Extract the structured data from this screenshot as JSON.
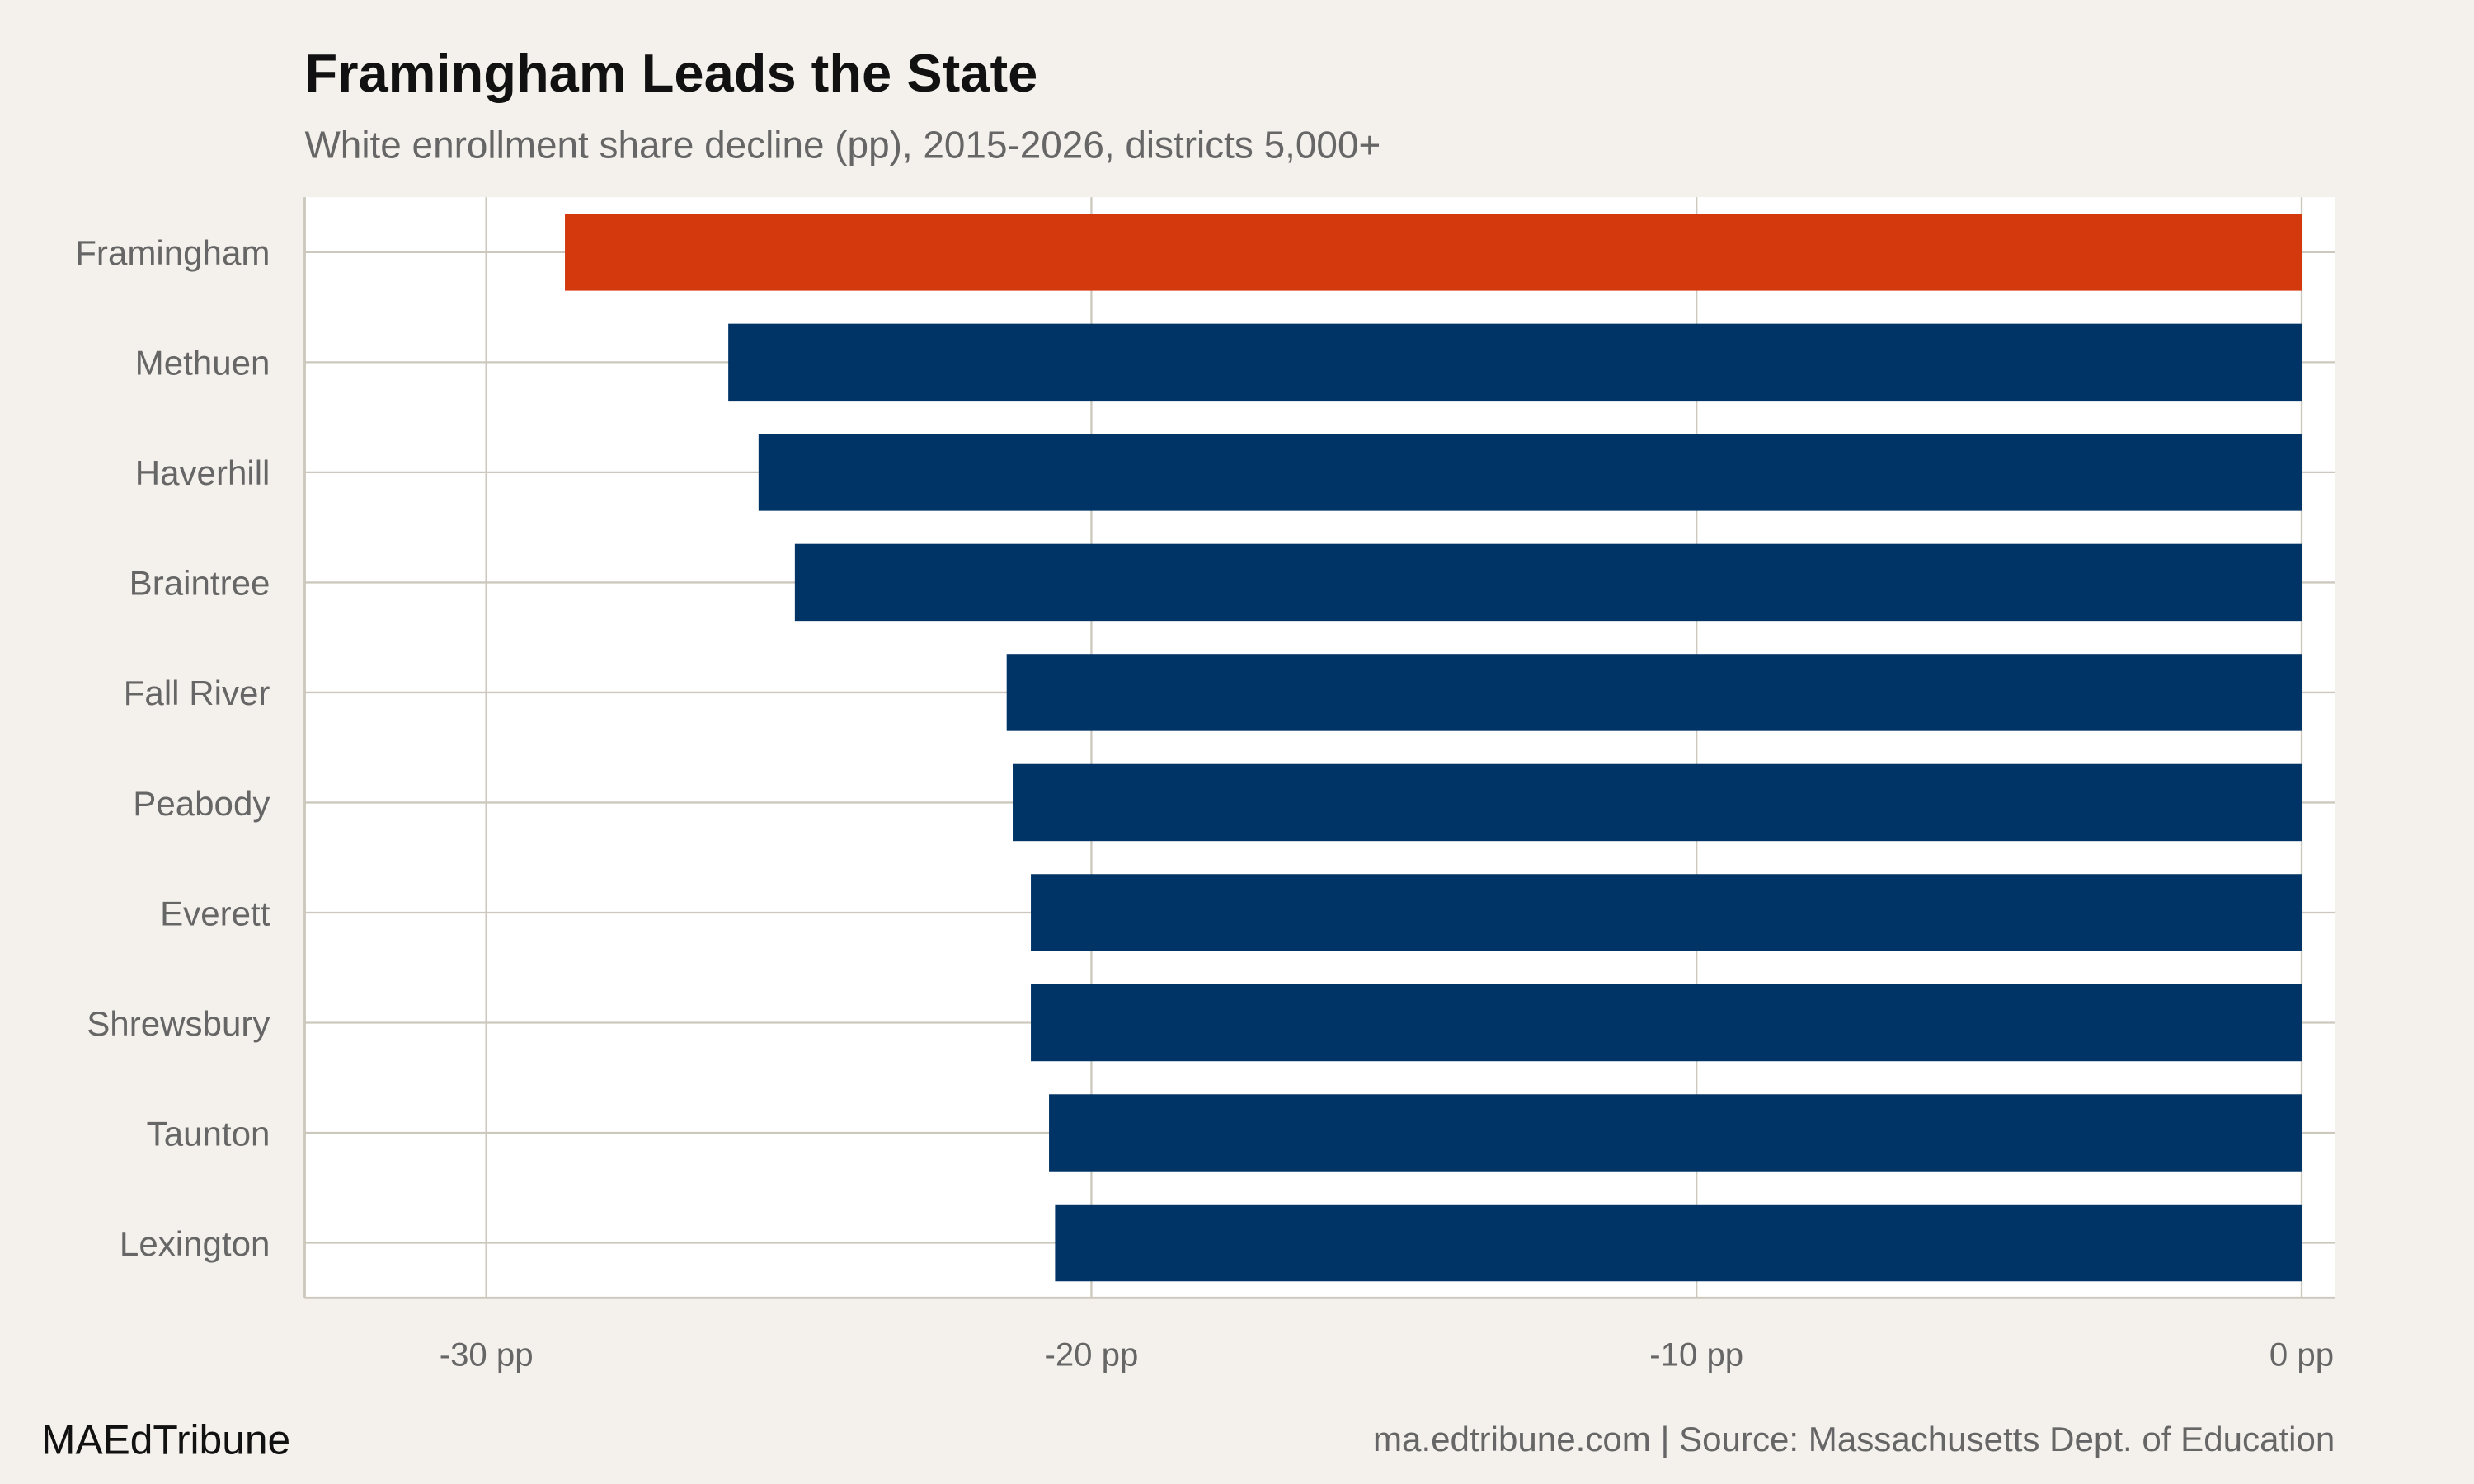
{
  "chart_data": {
    "type": "bar",
    "orientation": "horizontal",
    "title": "Framingham Leads the State",
    "subtitle": "White enrollment share decline (pp), 2015-2026, districts 5,000+",
    "categories": [
      "Framingham",
      "Methuen",
      "Haverhill",
      "Braintree",
      "Fall River",
      "Peabody",
      "Everett",
      "Shrewsbury",
      "Taunton",
      "Lexington"
    ],
    "values": [
      -28.7,
      -26.0,
      -25.5,
      -24.9,
      -21.4,
      -21.3,
      -21.0,
      -21.0,
      -20.7,
      -20.6
    ],
    "highlight": "Framingham",
    "colors": {
      "highlight": "#d4380d",
      "default": "#003366",
      "background": "#f4f1ec",
      "panel": "#ffffff",
      "grid": "#cdc8bd"
    },
    "xlim": [
      -33,
      0.55
    ],
    "xticks": [
      -30,
      -20,
      -10,
      0
    ],
    "xtick_labels": [
      "-30 pp",
      "-20 pp",
      "-10 pp",
      "0 pp"
    ],
    "grid": true,
    "xlabel": "",
    "ylabel": ""
  },
  "footer": {
    "brand": "MAEdTribune",
    "source": "ma.edtribune.com | Source: Massachusetts Dept. of Education"
  }
}
